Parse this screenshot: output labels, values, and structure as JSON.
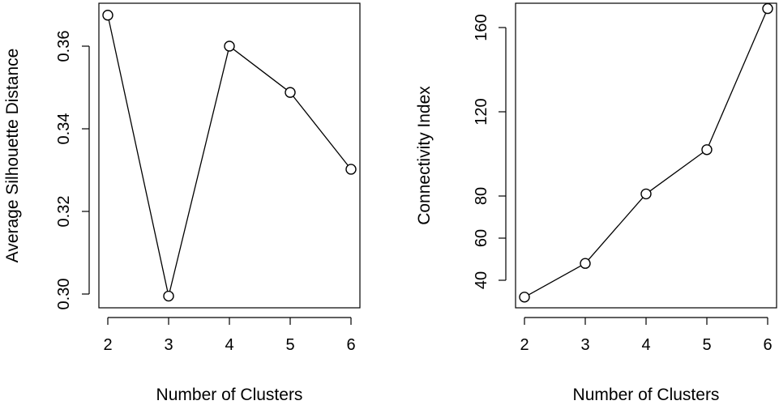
{
  "chart_data": [
    {
      "type": "line",
      "x": [
        2,
        3,
        4,
        5,
        6
      ],
      "series": [
        {
          "values": [
            0.3675,
            0.2995,
            0.36,
            0.3488,
            0.3302
          ]
        }
      ],
      "xlabel": "Number of Clusters",
      "ylabel": "Average Silhouette Distance",
      "xticks": [
        "2",
        "3",
        "4",
        "5",
        "6"
      ],
      "yticks": [
        "0.30",
        "0.32",
        "0.34",
        "0.36"
      ],
      "xlim": [
        2,
        6
      ],
      "ylim": [
        0.3,
        0.36
      ],
      "grid": false,
      "marker": "open-circle"
    },
    {
      "type": "line",
      "x": [
        2,
        3,
        4,
        5,
        6
      ],
      "series": [
        {
          "values": [
            32,
            48,
            81,
            102,
            169
          ]
        }
      ],
      "xlabel": "Number of Clusters",
      "ylabel": "Connectivity Index",
      "xticks": [
        "2",
        "3",
        "4",
        "5",
        "6"
      ],
      "yticks": [
        "40",
        "60",
        "80",
        "120",
        "160"
      ],
      "xlim": [
        2,
        6
      ],
      "ylim": [
        40,
        160
      ],
      "grid": false,
      "marker": "open-circle"
    }
  ]
}
